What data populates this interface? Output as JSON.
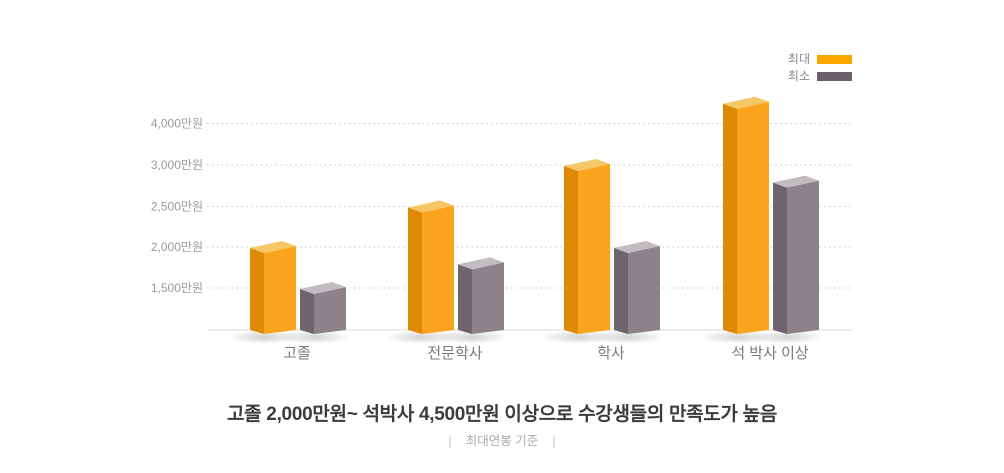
{
  "legend": {
    "items": [
      {
        "key": "max",
        "label": "최대",
        "color": "#FAA702"
      },
      {
        "key": "min",
        "label": "최소",
        "color": "#6B6067"
      }
    ]
  },
  "summary": {
    "title": "고졸 2,000만원~ 석박사 4,500만원 이상으로 수강생들의 만족도가 높음",
    "caption": "최대연봉 기준",
    "divider": "|"
  },
  "chart_data": {
    "type": "bar",
    "style": "3d-column",
    "categories": [
      "고졸",
      "전문학사",
      "학사",
      "석 박사 이상"
    ],
    "series": [
      {
        "key": "max",
        "name": "최대",
        "values": [
          2000,
          2500,
          3000,
          4500
        ],
        "colors": {
          "front": "#FAA41D",
          "side": "#DE8A06",
          "top": "#F6C767"
        }
      },
      {
        "key": "min",
        "name": "최소",
        "values": [
          1500,
          1800,
          2000,
          2800
        ],
        "colors": {
          "front": "#8D8289",
          "side": "#6E646B",
          "top": "#C2BBBF"
        }
      }
    ],
    "unit": "만원",
    "y_ticks": [
      {
        "label": "1,500만원",
        "value": 1500
      },
      {
        "label": "2,000만원",
        "value": 2000
      },
      {
        "label": "2,500만원",
        "value": 2500
      },
      {
        "label": "3,000만원",
        "value": 3000
      },
      {
        "label": "4,000만원",
        "value": 4000
      }
    ],
    "grid": "dotted-horizontal",
    "legend_position": "top-right",
    "xlabel": "",
    "ylabel": "",
    "title": ""
  }
}
